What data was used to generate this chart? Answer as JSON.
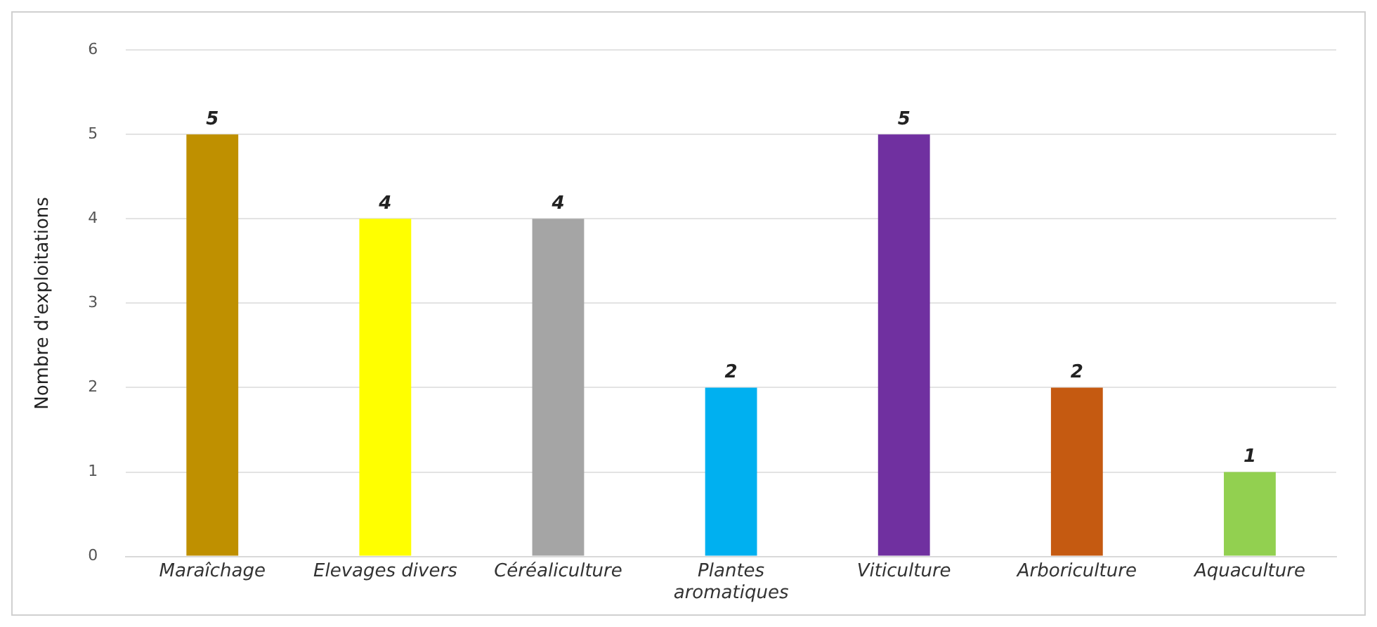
{
  "chart_data": {
    "type": "bar",
    "ylabel": "Nombre d'exploitations",
    "categories": [
      "Maraîchage",
      "Elevages divers",
      "Céréaliculture",
      "Plantes aromatiques",
      "Viticulture",
      "Arboriculture",
      "Aquaculture"
    ],
    "values": [
      5,
      4,
      4,
      2,
      5,
      2,
      1
    ],
    "colors": [
      "#bf9000",
      "#ffff00",
      "#a5a5a5",
      "#00b0f0",
      "#7030a0",
      "#c55a11",
      "#92d050"
    ],
    "ylim": [
      0,
      6
    ],
    "yticks": [
      0,
      1,
      2,
      3,
      4,
      5,
      6
    ],
    "grid": "y",
    "data_labels": true,
    "legend": false
  }
}
